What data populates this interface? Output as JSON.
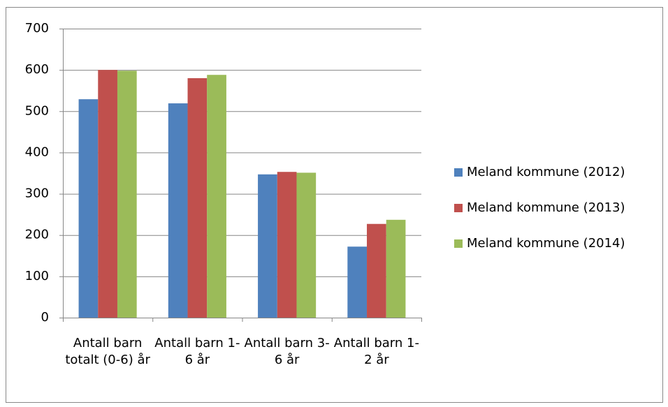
{
  "chart_data": {
    "type": "bar",
    "categories": [
      "Antall barn totalt (0-6) år",
      "Antall barn 1-6 år",
      "Antall barn 3-6 år",
      "Antall barn 1-2 år"
    ],
    "series": [
      {
        "name": "Meland kommune (2012)",
        "color": "#4f81bd",
        "values": [
          529,
          519,
          347,
          172
        ]
      },
      {
        "name": "Meland kommune (2013)",
        "color": "#c0504d",
        "values": [
          600,
          580,
          353,
          227
        ]
      },
      {
        "name": "Meland kommune (2014)",
        "color": "#9bbb59",
        "values": [
          598,
          588,
          351,
          237
        ]
      }
    ],
    "ylim": [
      0,
      700
    ],
    "yticks": [
      0,
      100,
      200,
      300,
      400,
      500,
      600,
      700
    ],
    "grid": true,
    "legend": "right"
  }
}
